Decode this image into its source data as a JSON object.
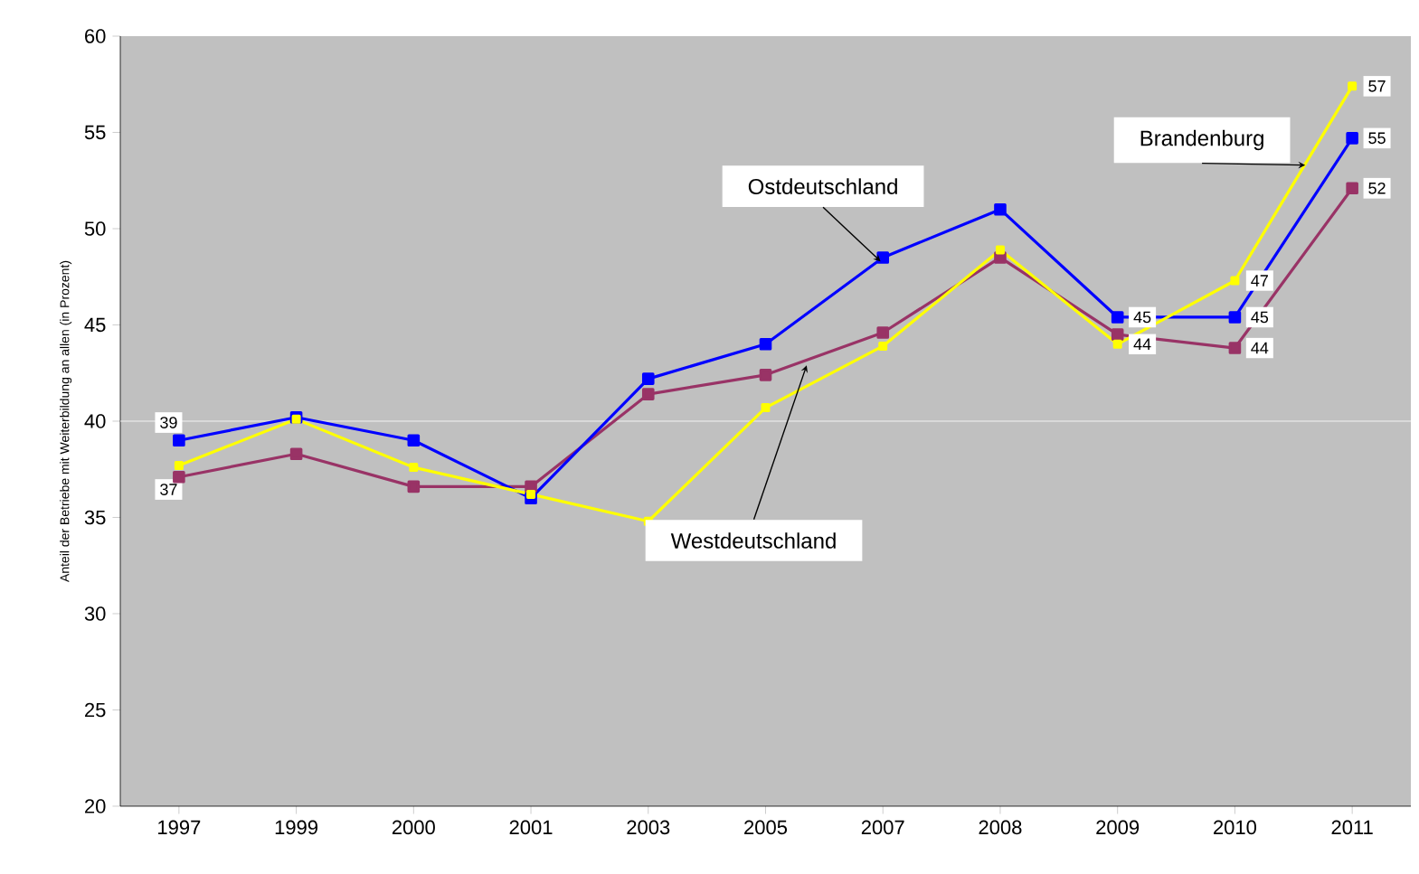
{
  "chart_data": {
    "type": "line",
    "ylabel": "Anteil der Betriebe mit Weiterbildung an allen (in Prozent)",
    "categories": [
      "1997",
      "1999",
      "2000",
      "2001",
      "2003",
      "2005",
      "2007",
      "2008",
      "2009",
      "2010",
      "2011"
    ],
    "ylim": [
      20,
      60
    ],
    "yticks": [
      20,
      25,
      30,
      35,
      40,
      45,
      50,
      55,
      60
    ],
    "grid": false,
    "legend": false,
    "marker": "square",
    "line_style": "solid",
    "ref_lines": [
      {
        "axis": "y",
        "value": 40,
        "color": "#ffffff"
      }
    ],
    "series": [
      {
        "name": "Ostdeutschland",
        "color": "#0000ff",
        "values": [
          39,
          40.2,
          39,
          36,
          42.2,
          44,
          48.5,
          51,
          45.4,
          45.4,
          54.7
        ],
        "value_labels": [
          "39",
          null,
          null,
          null,
          null,
          null,
          null,
          null,
          "45",
          "45",
          "55"
        ]
      },
      {
        "name": "Westdeutschland",
        "color": "#993366",
        "values": [
          37.1,
          38.3,
          36.6,
          36.6,
          41.4,
          42.4,
          44.6,
          48.5,
          44.5,
          43.8,
          52.1
        ],
        "value_labels": [
          "37",
          null,
          null,
          null,
          null,
          null,
          null,
          null,
          null,
          "44",
          "52"
        ]
      },
      {
        "name": "Brandenburg",
        "color": "#ffff00",
        "values": [
          37.7,
          40.1,
          37.6,
          36.2,
          34.8,
          40.7,
          43.9,
          48.9,
          44,
          47.3,
          57.4
        ],
        "value_labels": [
          null,
          null,
          null,
          null,
          null,
          null,
          null,
          null,
          "44",
          "47",
          "57"
        ]
      }
    ]
  }
}
